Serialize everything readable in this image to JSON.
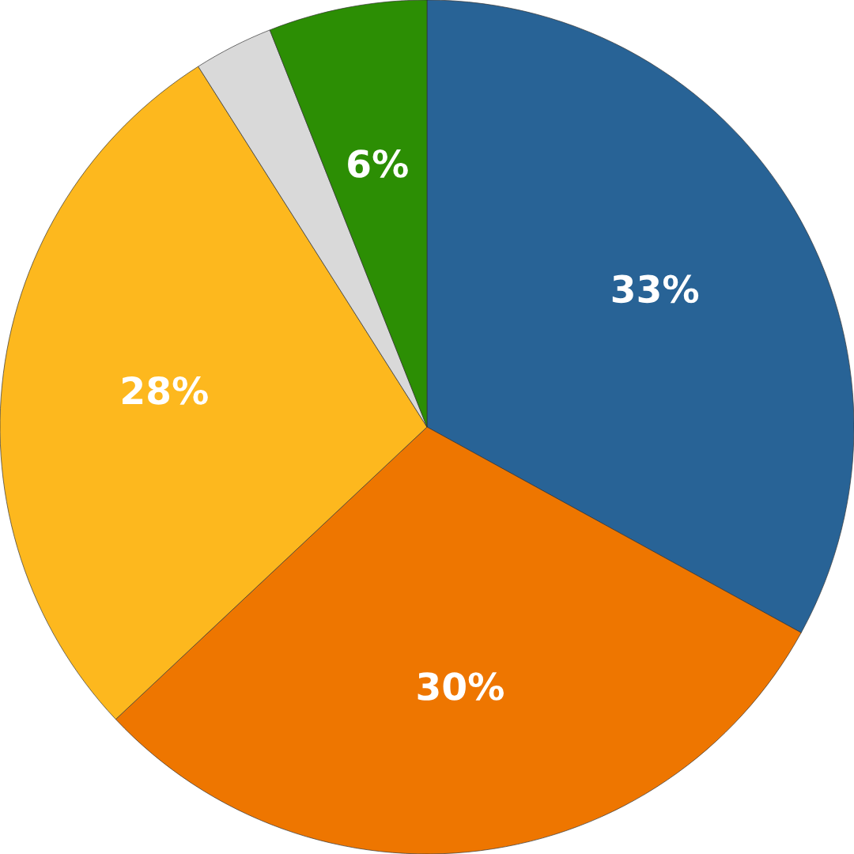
{
  "chart_data": {
    "type": "pie",
    "categories": [
      null,
      null,
      null,
      null,
      null
    ],
    "values": [
      33,
      30,
      28,
      3,
      6
    ],
    "colors": [
      "#286396",
      "#ee7600",
      "#fdb81e",
      "#d9d9d9",
      "#2c8e04"
    ],
    "value_labels": [
      "33%",
      "30%",
      "28%",
      null,
      "6%"
    ]
  }
}
